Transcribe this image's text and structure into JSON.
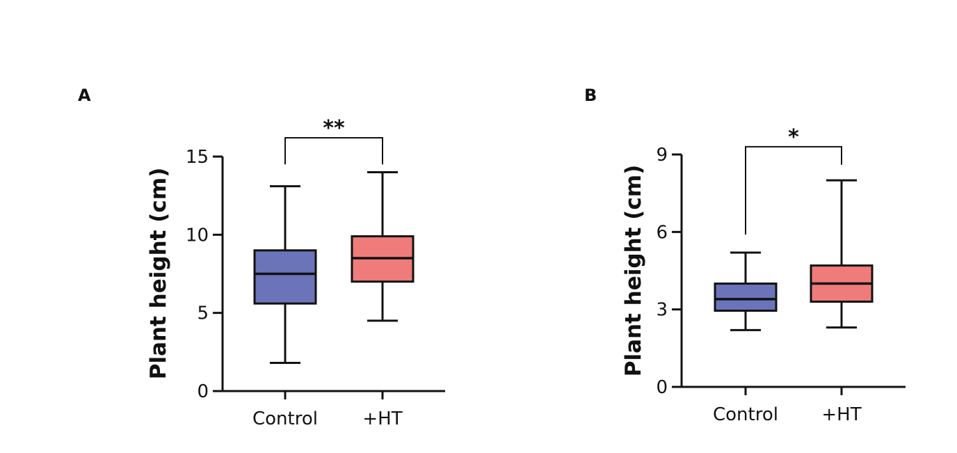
{
  "chart_data": [
    {
      "panel": "A",
      "type": "box",
      "ylabel": "Plant height (cm)",
      "ylim": [
        0,
        15
      ],
      "yticks": [
        0,
        5,
        10,
        15
      ],
      "categories": [
        "Control",
        "+HT"
      ],
      "boxes": [
        {
          "category": "Control",
          "min": 1.8,
          "q1": 5.6,
          "median": 7.5,
          "q3": 9.0,
          "max": 13.1,
          "color": "#6b74b9"
        },
        {
          "category": "+HT",
          "min": 4.5,
          "q1": 7.0,
          "median": 8.5,
          "q3": 9.9,
          "max": 14.0,
          "color": "#ef7c7a"
        }
      ],
      "significance": {
        "from": "Control",
        "to": "+HT",
        "label": "**",
        "left_y": 14.5,
        "right_y": 14.5,
        "top_y": 16.2
      }
    },
    {
      "panel": "B",
      "type": "box",
      "ylabel": "Plant height (cm)",
      "ylim": [
        0,
        9
      ],
      "yticks": [
        0,
        3,
        6,
        9
      ],
      "categories": [
        "Control",
        "+HT"
      ],
      "boxes": [
        {
          "category": "Control",
          "min": 2.2,
          "q1": 2.95,
          "median": 3.4,
          "q3": 4.0,
          "max": 5.2,
          "color": "#6b74b9"
        },
        {
          "category": "+HT",
          "min": 2.3,
          "q1": 3.3,
          "median": 4.0,
          "q3": 4.7,
          "max": 8.0,
          "color": "#ef7c7a"
        }
      ],
      "significance": {
        "from": "Control",
        "to": "+HT",
        "label": "*",
        "left_y": 5.9,
        "right_y": 8.6,
        "top_y": 9.3
      }
    }
  ]
}
